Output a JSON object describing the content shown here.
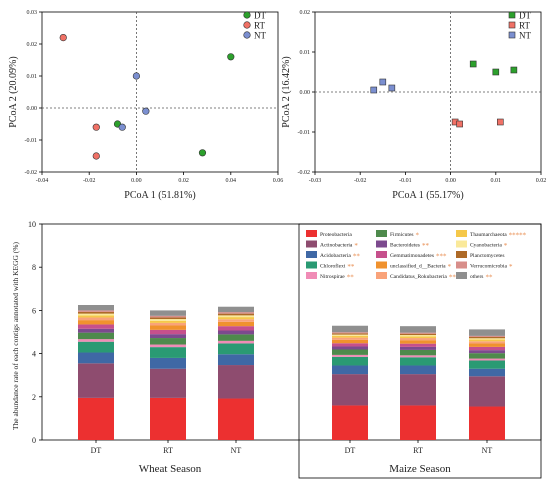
{
  "colors": {
    "DT": "#2ca02c",
    "RT": "#f07166",
    "NT": "#7b8fd0",
    "point_stroke": "#333333"
  },
  "chart_data": [
    {
      "type": "scatter",
      "xlabel": "PCoA 1 (51.81%)",
      "ylabel": "PCoA 2 (20.09%)",
      "xlim": [
        -0.04,
        0.06
      ],
      "ylim": [
        -0.02,
        0.03
      ],
      "xticks": [
        "-0.04",
        "-0.02",
        "0.00",
        "0.02",
        "0.04",
        "0.06"
      ],
      "yticks": [
        "-0.02",
        "-0.01",
        "0.00",
        "0.01",
        "0.02",
        "0.03"
      ],
      "xtick_values": [
        -0.04,
        -0.02,
        0.0,
        0.02,
        0.04,
        0.06
      ],
      "ytick_values": [
        -0.02,
        -0.01,
        0.0,
        0.01,
        0.02,
        0.03
      ],
      "marker": "circle",
      "legend_position": "top-right",
      "series": [
        {
          "name": "DT",
          "points": [
            [
              0.04,
              0.016
            ],
            [
              0.028,
              -0.014
            ],
            [
              -0.008,
              -0.005
            ]
          ]
        },
        {
          "name": "RT",
          "points": [
            [
              -0.031,
              0.022
            ],
            [
              -0.017,
              -0.006
            ],
            [
              -0.017,
              -0.015
            ]
          ]
        },
        {
          "name": "NT",
          "points": [
            [
              0.0,
              0.01
            ],
            [
              0.004,
              -0.001
            ],
            [
              -0.006,
              -0.006
            ]
          ]
        }
      ]
    },
    {
      "type": "scatter",
      "xlabel": "PCoA 1 (55.17%)",
      "ylabel": "PCoA 2 (16.42%)",
      "xlim": [
        -0.03,
        0.02
      ],
      "ylim": [
        -0.02,
        0.02
      ],
      "xticks": [
        "-0.03",
        "-0.02",
        "-0.01",
        "0.00",
        "0.01",
        "0.02"
      ],
      "yticks": [
        "-0.02",
        "-0.01",
        "0.00",
        "0.01",
        "0.02"
      ],
      "xtick_values": [
        -0.03,
        -0.02,
        -0.01,
        0.0,
        0.01,
        0.02
      ],
      "ytick_values": [
        -0.02,
        -0.01,
        0.0,
        0.01,
        0.02
      ],
      "marker": "square",
      "legend_position": "top-right",
      "series": [
        {
          "name": "DT",
          "points": [
            [
              0.005,
              0.007
            ],
            [
              0.01,
              0.005
            ],
            [
              0.014,
              0.0055
            ]
          ]
        },
        {
          "name": "RT",
          "points": [
            [
              0.001,
              -0.0075
            ],
            [
              0.002,
              -0.008
            ],
            [
              0.011,
              -0.0075
            ]
          ]
        },
        {
          "name": "NT",
          "points": [
            [
              -0.017,
              0.0005
            ],
            [
              -0.015,
              0.0025
            ],
            [
              -0.013,
              0.001
            ]
          ]
        }
      ]
    },
    {
      "type": "bar",
      "stacked": true,
      "ylabel": "The abundance rate of each contigs annotated with KEGG (%)",
      "ylim": [
        0,
        10
      ],
      "yticks": [
        "0",
        "2",
        "4",
        "6",
        "8",
        "10"
      ],
      "ytick_values": [
        0,
        2,
        4,
        6,
        8,
        10
      ],
      "groups": [
        {
          "name": "Wheat Season",
          "categories": [
            "DT",
            "RT",
            "NT"
          ]
        },
        {
          "name": "Maize Season",
          "categories": [
            "DT",
            "RT",
            "NT"
          ]
        }
      ],
      "series": [
        {
          "name": "Proteobacteria",
          "color": "#ec3030",
          "marks": "",
          "values": [
            1.95,
            1.95,
            1.92,
            1.6,
            1.6,
            1.55
          ]
        },
        {
          "name": "Actinobacteria",
          "color": "#8e4c6f",
          "marks": "*",
          "values": [
            1.6,
            1.35,
            1.55,
            1.45,
            1.45,
            1.4
          ]
        },
        {
          "name": "Acidobacteria",
          "color": "#3f68a5",
          "marks": "**",
          "values": [
            0.5,
            0.5,
            0.5,
            0.4,
            0.4,
            0.35
          ]
        },
        {
          "name": "Chloroflexi",
          "color": "#2a9a73",
          "marks": "**",
          "values": [
            0.5,
            0.5,
            0.5,
            0.4,
            0.38,
            0.38
          ]
        },
        {
          "name": "Nitrospirae",
          "color": "#f08cb6",
          "marks": "**",
          "values": [
            0.12,
            0.12,
            0.12,
            0.09,
            0.09,
            0.09
          ]
        },
        {
          "name": "Firmicutes",
          "color": "#4e8a4c",
          "marks": "*",
          "values": [
            0.3,
            0.3,
            0.3,
            0.25,
            0.25,
            0.25
          ]
        },
        {
          "name": "Bacteroidetes",
          "color": "#7c4a8e",
          "marks": "**",
          "values": [
            0.18,
            0.18,
            0.18,
            0.14,
            0.14,
            0.14
          ]
        },
        {
          "name": "Gemmatimonadetes",
          "color": "#c6508c",
          "marks": "***",
          "values": [
            0.2,
            0.2,
            0.2,
            0.15,
            0.15,
            0.15
          ]
        },
        {
          "name": "unclassified_d__Bacteria",
          "color": "#f0922e",
          "marks": "*",
          "values": [
            0.2,
            0.2,
            0.2,
            0.16,
            0.16,
            0.16
          ]
        },
        {
          "name": "Candidatus_Rokubacteria",
          "color": "#f9a37a",
          "marks": "**",
          "values": [
            0.12,
            0.12,
            0.12,
            0.1,
            0.1,
            0.1
          ]
        },
        {
          "name": "Thaumarchaeota",
          "color": "#f5c84a",
          "marks": "*****",
          "values": [
            0.1,
            0.1,
            0.1,
            0.08,
            0.08,
            0.08
          ]
        },
        {
          "name": "Cyanobacteria",
          "color": "#fae99a",
          "marks": "*",
          "values": [
            0.08,
            0.08,
            0.08,
            0.06,
            0.06,
            0.06
          ]
        },
        {
          "name": "Planctomycetes",
          "color": "#ae6a28",
          "marks": "",
          "values": [
            0.08,
            0.08,
            0.08,
            0.06,
            0.06,
            0.06
          ]
        },
        {
          "name": "Verrucomicrobia",
          "color": "#d88e8a",
          "marks": "*",
          "values": [
            0.07,
            0.07,
            0.07,
            0.05,
            0.05,
            0.05
          ]
        },
        {
          "name": "others",
          "color": "#8f8f8f",
          "marks": "**",
          "values": [
            0.25,
            0.25,
            0.25,
            0.3,
            0.3,
            0.3
          ]
        }
      ]
    }
  ]
}
